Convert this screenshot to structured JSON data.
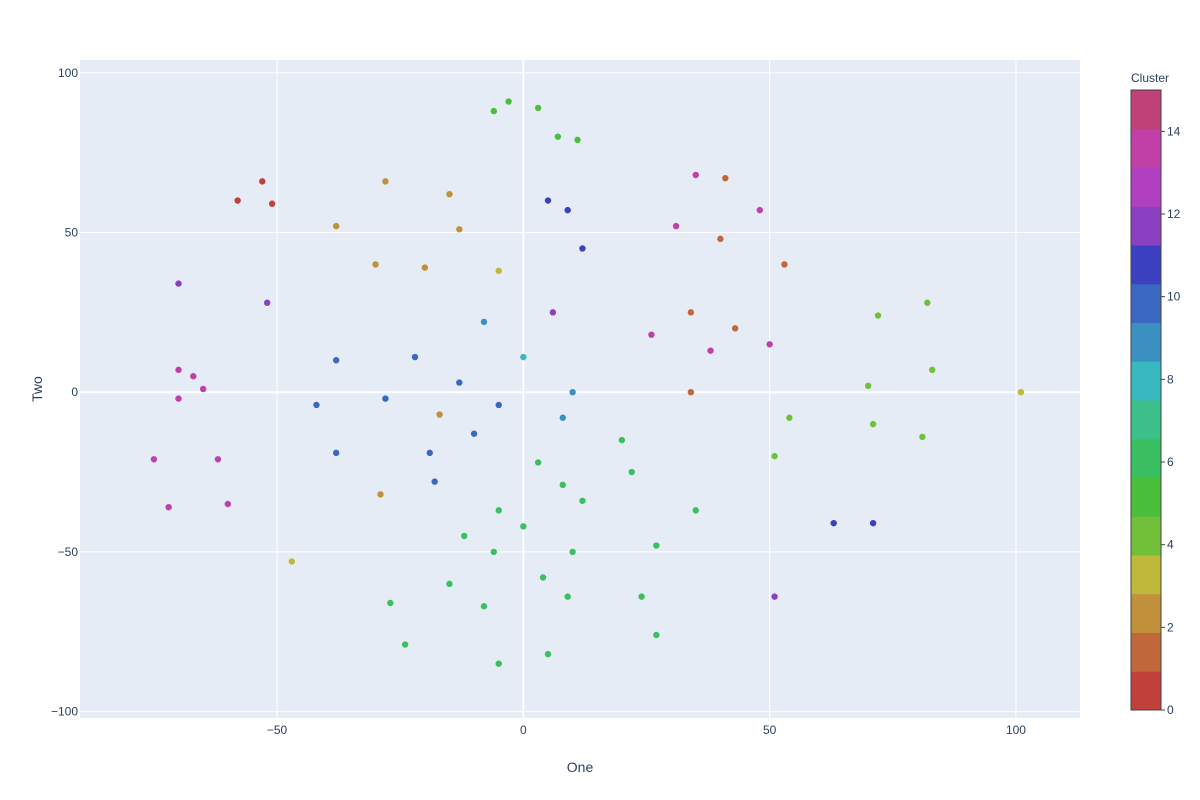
{
  "chart_data": {
    "type": "scatter",
    "xlabel": "One",
    "ylabel": "Two",
    "xlim": [
      -90,
      113
    ],
    "ylim": [
      -102,
      104
    ],
    "x_ticks": [
      -50,
      0,
      50,
      100
    ],
    "y_ticks": [
      -100,
      -50,
      0,
      50,
      100
    ],
    "grid": true,
    "colorbar": {
      "title": "Cluster",
      "range": [
        0,
        15
      ],
      "ticks": [
        0,
        2,
        4,
        6,
        8,
        10,
        12,
        14
      ],
      "colors": [
        "#c0403a",
        "#c0683a",
        "#c0903a",
        "#c0b83a",
        "#72c03a",
        "#4ac03a",
        "#3ac060",
        "#3ac088",
        "#3ab8c0",
        "#3a90c0",
        "#3a68c0",
        "#3a40c0",
        "#8a40c0",
        "#b040c0",
        "#c040a8",
        "#c04078"
      ]
    },
    "marker_color_note": "points colored by cluster id",
    "points": [
      {
        "x": 3,
        "y": 89,
        "c": 5
      },
      {
        "x": -6,
        "y": 88,
        "c": 5
      },
      {
        "x": -3,
        "y": 91,
        "c": 5
      },
      {
        "x": 7,
        "y": 80,
        "c": 5
      },
      {
        "x": 11,
        "y": 79,
        "c": 5
      },
      {
        "x": -58,
        "y": 60,
        "c": 0
      },
      {
        "x": -53,
        "y": 66,
        "c": 0
      },
      {
        "x": -51,
        "y": 59,
        "c": 0
      },
      {
        "x": 5,
        "y": 60,
        "c": 11
      },
      {
        "x": 9,
        "y": 57,
        "c": 11
      },
      {
        "x": 12,
        "y": 45,
        "c": 11
      },
      {
        "x": -38,
        "y": 52,
        "c": 2
      },
      {
        "x": -28,
        "y": 66,
        "c": 2
      },
      {
        "x": -15,
        "y": 62,
        "c": 2
      },
      {
        "x": -30,
        "y": 40,
        "c": 2
      },
      {
        "x": -20,
        "y": 39,
        "c": 2
      },
      {
        "x": -13,
        "y": 51,
        "c": 2
      },
      {
        "x": -5,
        "y": 38,
        "c": 3
      },
      {
        "x": -70,
        "y": 34,
        "c": 12
      },
      {
        "x": -52,
        "y": 28,
        "c": 12
      },
      {
        "x": 35,
        "y": 68,
        "c": 14
      },
      {
        "x": 41,
        "y": 67,
        "c": 1
      },
      {
        "x": 31,
        "y": 52,
        "c": 14
      },
      {
        "x": 40,
        "y": 48,
        "c": 1
      },
      {
        "x": 48,
        "y": 57,
        "c": 14
      },
      {
        "x": 53,
        "y": 40,
        "c": 1
      },
      {
        "x": 26,
        "y": 18,
        "c": 14
      },
      {
        "x": 34,
        "y": 25,
        "c": 1
      },
      {
        "x": 43,
        "y": 20,
        "c": 1
      },
      {
        "x": 38,
        "y": 13,
        "c": 14
      },
      {
        "x": 50,
        "y": 15,
        "c": 14
      },
      {
        "x": 34,
        "y": 0,
        "c": 1
      },
      {
        "x": -8,
        "y": 22,
        "c": 9
      },
      {
        "x": 6,
        "y": 25,
        "c": 12
      },
      {
        "x": 0,
        "y": 11,
        "c": 8
      },
      {
        "x": 10,
        "y": 0,
        "c": 9
      },
      {
        "x": 8,
        "y": -8,
        "c": 9
      },
      {
        "x": -70,
        "y": 7,
        "c": 14
      },
      {
        "x": -67,
        "y": 5,
        "c": 14
      },
      {
        "x": -70,
        "y": -2,
        "c": 14
      },
      {
        "x": -65,
        "y": 1,
        "c": 14
      },
      {
        "x": -38,
        "y": 10,
        "c": 10
      },
      {
        "x": -22,
        "y": 11,
        "c": 10
      },
      {
        "x": -42,
        "y": -4,
        "c": 10
      },
      {
        "x": -28,
        "y": -2,
        "c": 10
      },
      {
        "x": -13,
        "y": 3,
        "c": 10
      },
      {
        "x": -17,
        "y": -7,
        "c": 2
      },
      {
        "x": -5,
        "y": -4,
        "c": 10
      },
      {
        "x": -38,
        "y": -19,
        "c": 10
      },
      {
        "x": -19,
        "y": -19,
        "c": 10
      },
      {
        "x": -10,
        "y": -13,
        "c": 10
      },
      {
        "x": -29,
        "y": -32,
        "c": 2
      },
      {
        "x": -18,
        "y": -28,
        "c": 10
      },
      {
        "x": -75,
        "y": -21,
        "c": 14
      },
      {
        "x": -62,
        "y": -21,
        "c": 14
      },
      {
        "x": -72,
        "y": -36,
        "c": 14
      },
      {
        "x": -60,
        "y": -35,
        "c": 14
      },
      {
        "x": -47,
        "y": -53,
        "c": 3
      },
      {
        "x": 72,
        "y": 24,
        "c": 4
      },
      {
        "x": 82,
        "y": 28,
        "c": 4
      },
      {
        "x": 83,
        "y": 7,
        "c": 4
      },
      {
        "x": 70,
        "y": 2,
        "c": 4
      },
      {
        "x": 71,
        "y": -10,
        "c": 4
      },
      {
        "x": 81,
        "y": -14,
        "c": 4
      },
      {
        "x": 54,
        "y": -8,
        "c": 4
      },
      {
        "x": 51,
        "y": -20,
        "c": 4
      },
      {
        "x": 101,
        "y": 0,
        "c": 3
      },
      {
        "x": 20,
        "y": -15,
        "c": 6
      },
      {
        "x": 22,
        "y": -25,
        "c": 6
      },
      {
        "x": 3,
        "y": -22,
        "c": 6
      },
      {
        "x": 8,
        "y": -29,
        "c": 6
      },
      {
        "x": 12,
        "y": -34,
        "c": 6
      },
      {
        "x": 35,
        "y": -37,
        "c": 6
      },
      {
        "x": 63,
        "y": -41,
        "c": 11
      },
      {
        "x": 71,
        "y": -41,
        "c": 11
      },
      {
        "x": 51,
        "y": -64,
        "c": 12
      },
      {
        "x": -5,
        "y": -37,
        "c": 6
      },
      {
        "x": 0,
        "y": -42,
        "c": 6
      },
      {
        "x": -12,
        "y": -45,
        "c": 6
      },
      {
        "x": -6,
        "y": -50,
        "c": 6
      },
      {
        "x": 10,
        "y": -50,
        "c": 6
      },
      {
        "x": 27,
        "y": -48,
        "c": 6
      },
      {
        "x": -15,
        "y": -60,
        "c": 6
      },
      {
        "x": -8,
        "y": -67,
        "c": 6
      },
      {
        "x": 4,
        "y": -58,
        "c": 6
      },
      {
        "x": 9,
        "y": -64,
        "c": 6
      },
      {
        "x": -27,
        "y": -66,
        "c": 6
      },
      {
        "x": 24,
        "y": -64,
        "c": 6
      },
      {
        "x": -24,
        "y": -79,
        "c": 6
      },
      {
        "x": -5,
        "y": -85,
        "c": 6
      },
      {
        "x": 5,
        "y": -82,
        "c": 6
      },
      {
        "x": 27,
        "y": -76,
        "c": 6
      }
    ]
  }
}
